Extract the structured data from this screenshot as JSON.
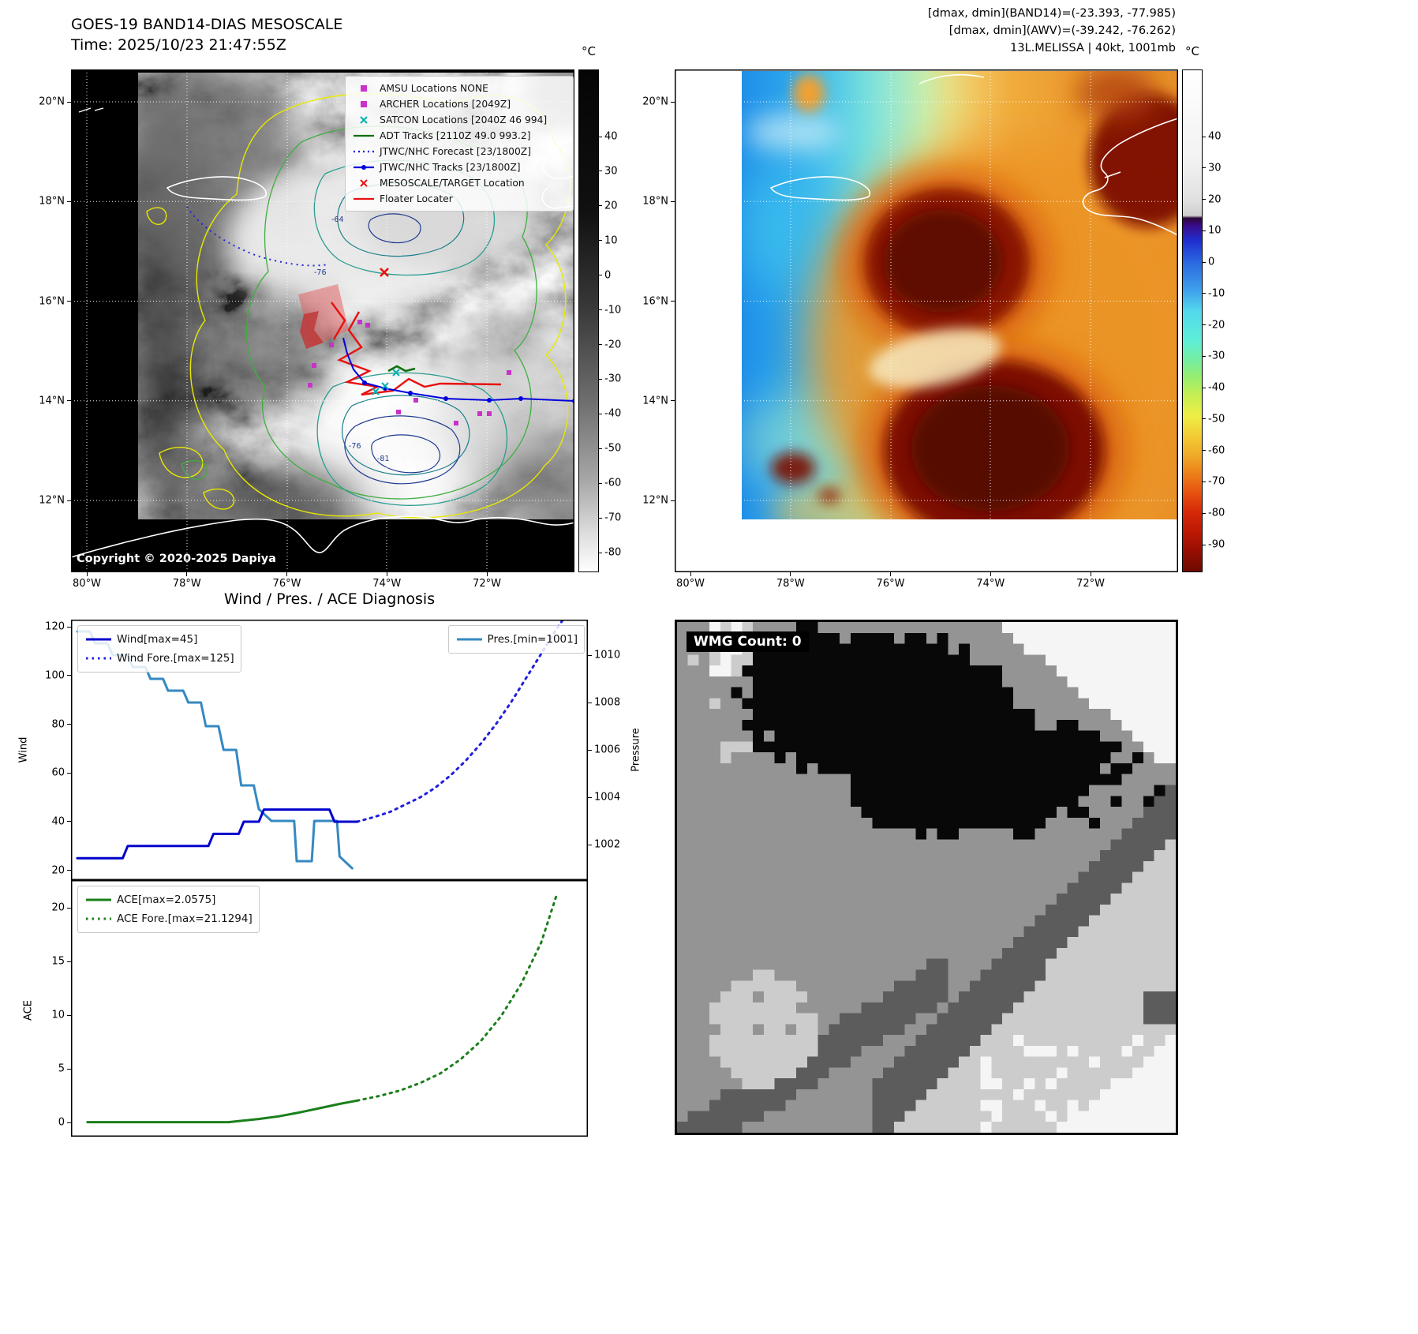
{
  "panel_band14": {
    "title_line1": "GOES-19 BAND14-DIAS MESOSCALE",
    "title_line2": "Time: 2025/10/23 21:47:55Z",
    "copyright": "Copyright © 2020-2025 Dapiya",
    "colorbar_unit": "°C",
    "colorbar_ticks": [
      "40",
      "30",
      "20",
      "10",
      "0",
      "-10",
      "-20",
      "-30",
      "-40",
      "-50",
      "-60",
      "-70",
      "-80"
    ],
    "lat_ticks": [
      "20°N",
      "18°N",
      "16°N",
      "14°N",
      "12°N"
    ],
    "lon_ticks": [
      "80°W",
      "78°W",
      "76°W",
      "74°W",
      "72°W"
    ],
    "contour_labels": [
      "-64",
      "-76",
      "-76",
      "-81"
    ],
    "legend": [
      {
        "label": "AMSU Locations NONE",
        "marker": "square",
        "color": "#c832c8"
      },
      {
        "label": "ARCHER Locations [2049Z]",
        "marker": "square",
        "color": "#c832c8"
      },
      {
        "label": "SATCON Locations [2040Z 46 994]",
        "marker": "x",
        "color": "#00b2b2"
      },
      {
        "label": "ADT Tracks [2110Z 49.0 993.2]",
        "marker": "line",
        "color": "#107010"
      },
      {
        "label": "JTWC/NHC Forecast [23/1800Z]",
        "marker": "dotted",
        "color": "#0000dd"
      },
      {
        "label": "JTWC/NHC Tracks [23/1800Z]",
        "marker": "line-dot",
        "color": "#0000dd"
      },
      {
        "label": "MESOSCALE/TARGET Location",
        "marker": "x",
        "color": "#e81010"
      },
      {
        "label": "Floater Locater",
        "marker": "line",
        "color": "#e81010"
      }
    ]
  },
  "panel_awv": {
    "header_line1": "[dmax, dmin](BAND14)=(-23.393, -77.985)",
    "header_line2": "[dmax, dmin](AWV)=(-39.242, -76.262)",
    "header_line3": "13L.MELISSA | 40kt, 1001mb",
    "colorbar_unit": "°C",
    "colorbar_ticks": [
      "40",
      "30",
      "20",
      "10",
      "0",
      "-10",
      "-20",
      "-30",
      "-40",
      "-50",
      "-60",
      "-70",
      "-80",
      "-90"
    ],
    "lat_ticks": [
      "20°N",
      "18°N",
      "16°N",
      "14°N",
      "12°N"
    ],
    "lon_ticks": [
      "80°W",
      "78°W",
      "76°W",
      "74°W",
      "72°W"
    ]
  },
  "wmg_label": "WMG Count: 0",
  "chart_data": [
    {
      "type": "line",
      "title": "Wind / Pres. / ACE Diagnosis",
      "ylabel_left": "Wind",
      "ylabel_right": "Pressure",
      "yticks_left": [
        120,
        100,
        80,
        60,
        40,
        20
      ],
      "yticks_right": [
        1010,
        1008,
        1006,
        1004,
        1002
      ],
      "ylim_left": [
        16,
        123
      ],
      "ylim_right": [
        1000.5,
        1011.5
      ],
      "x_note": "normalized time axis 0-1, no x tick labels shown",
      "grid": false,
      "series": [
        {
          "name": "Wind[max=45]",
          "data_name": "wind-observed-series",
          "axis": "left",
          "style": "solid",
          "color": "#0000cc",
          "legend_box": "a",
          "x": [
            0,
            0.09,
            0.1,
            0.26,
            0.27,
            0.32,
            0.33,
            0.36,
            0.37,
            0.5,
            0.51,
            0.555
          ],
          "y": [
            25,
            25,
            30,
            30,
            35,
            35,
            40,
            40,
            45,
            45,
            40,
            40
          ]
        },
        {
          "name": "Wind Fore.[max=125]",
          "data_name": "wind-forecast-series",
          "axis": "left",
          "style": "dotted",
          "color": "#2020e0",
          "legend_box": "a",
          "x": [
            0.555,
            0.59,
            0.62,
            0.65,
            0.68,
            0.71,
            0.74,
            0.77,
            0.8,
            0.83,
            0.86,
            0.89,
            0.92,
            0.95,
            0.97
          ],
          "y": [
            40,
            42,
            44,
            47,
            50,
            54,
            59,
            65,
            72,
            80,
            89,
            99,
            109,
            119,
            125
          ]
        },
        {
          "name": "Pres.[min=1001]",
          "data_name": "pressure-series",
          "axis": "right",
          "style": "solid",
          "color": "#3589c2",
          "legend_box": "b",
          "x": [
            0,
            0.025,
            0.035,
            0.06,
            0.07,
            0.1,
            0.11,
            0.135,
            0.145,
            0.17,
            0.18,
            0.21,
            0.22,
            0.245,
            0.255,
            0.28,
            0.29,
            0.315,
            0.325,
            0.35,
            0.36,
            0.385,
            0.43,
            0.435,
            0.465,
            0.47,
            0.5,
            0.515,
            0.52,
            0.545
          ],
          "y": [
            1011,
            1011,
            1010.5,
            1010.5,
            1010,
            1010,
            1009.5,
            1009.5,
            1009,
            1009,
            1008.5,
            1008.5,
            1008,
            1008,
            1007,
            1007,
            1006,
            1006,
            1004.5,
            1004.5,
            1003.5,
            1003,
            1003,
            1001.3,
            1001.3,
            1003,
            1003,
            1003,
            1001.5,
            1001
          ]
        }
      ]
    },
    {
      "type": "line",
      "title": "",
      "ylabel_left": "ACE",
      "yticks_left": [
        20,
        15,
        10,
        5,
        0
      ],
      "ylim_left": [
        -1.3,
        22.6
      ],
      "x_note": "normalized time axis 0-1, no x tick labels shown",
      "grid": false,
      "series": [
        {
          "name": "ACE[max=2.0575]",
          "data_name": "ace-observed-series",
          "axis": "left",
          "style": "solid",
          "color": "#1b7f1b",
          "legend_box": "a",
          "x": [
            0.02,
            0.1,
            0.2,
            0.3,
            0.32,
            0.36,
            0.4,
            0.44,
            0.48,
            0.52,
            0.555
          ],
          "y": [
            0.05,
            0.05,
            0.05,
            0.05,
            0.15,
            0.35,
            0.6,
            0.95,
            1.35,
            1.75,
            2.06
          ]
        },
        {
          "name": "ACE Fore.[max=21.1294]",
          "data_name": "ace-forecast-series",
          "axis": "left",
          "style": "dotted",
          "color": "#1b7f1b",
          "legend_box": "a",
          "x": [
            0.555,
            0.6,
            0.64,
            0.68,
            0.72,
            0.76,
            0.8,
            0.84,
            0.88,
            0.92,
            0.95
          ],
          "y": [
            2.06,
            2.5,
            3.0,
            3.7,
            4.6,
            5.9,
            7.6,
            9.9,
            12.9,
            16.8,
            21.1294
          ]
        }
      ]
    }
  ]
}
